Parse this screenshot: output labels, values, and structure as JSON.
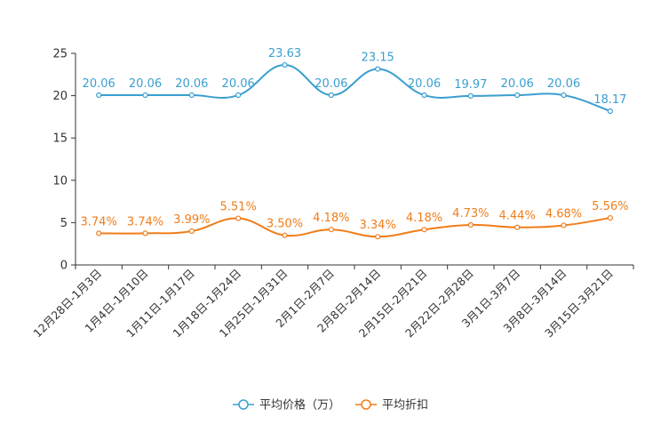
{
  "chart_data": {
    "type": "line",
    "categories": [
      "12月28日-1月3日",
      "1月4日-1月10日",
      "1月11日-1月17日",
      "1月18日-1月24日",
      "1月25日-1月31日",
      "2月1日-2月7日",
      "2月8日-2月14日",
      "2月15日-2月21日",
      "2月22日-2月28日",
      "3月1日-3月7日",
      "3月8日-3月14日",
      "3月15日-3月21日"
    ],
    "ylim": [
      0,
      25
    ],
    "yticks": [
      0,
      5,
      10,
      15,
      20,
      25
    ],
    "grid": false,
    "legend_position": "bottom",
    "series": [
      {
        "name": "平均价格（万）",
        "color": "#3a9fd0",
        "values": [
          20.06,
          20.06,
          20.06,
          20.06,
          23.63,
          20.06,
          23.15,
          20.06,
          19.97,
          20.06,
          20.06,
          18.17
        ],
        "labels": [
          "20.06",
          "20.06",
          "20.06",
          "20.06",
          "23.63",
          "20.06",
          "23.15",
          "20.06",
          "19.97",
          "20.06",
          "20.06",
          "18.17"
        ]
      },
      {
        "name": "平均折扣",
        "color": "#f07d1a",
        "values": [
          3.74,
          3.74,
          3.99,
          5.51,
          3.5,
          4.18,
          3.34,
          4.18,
          4.73,
          4.44,
          4.68,
          5.56
        ],
        "labels": [
          "3.74%",
          "3.74%",
          "3.99%",
          "5.51%",
          "3.50%",
          "4.18%",
          "3.34%",
          "4.18%",
          "4.73%",
          "4.44%",
          "4.68%",
          "5.56%"
        ]
      }
    ]
  }
}
